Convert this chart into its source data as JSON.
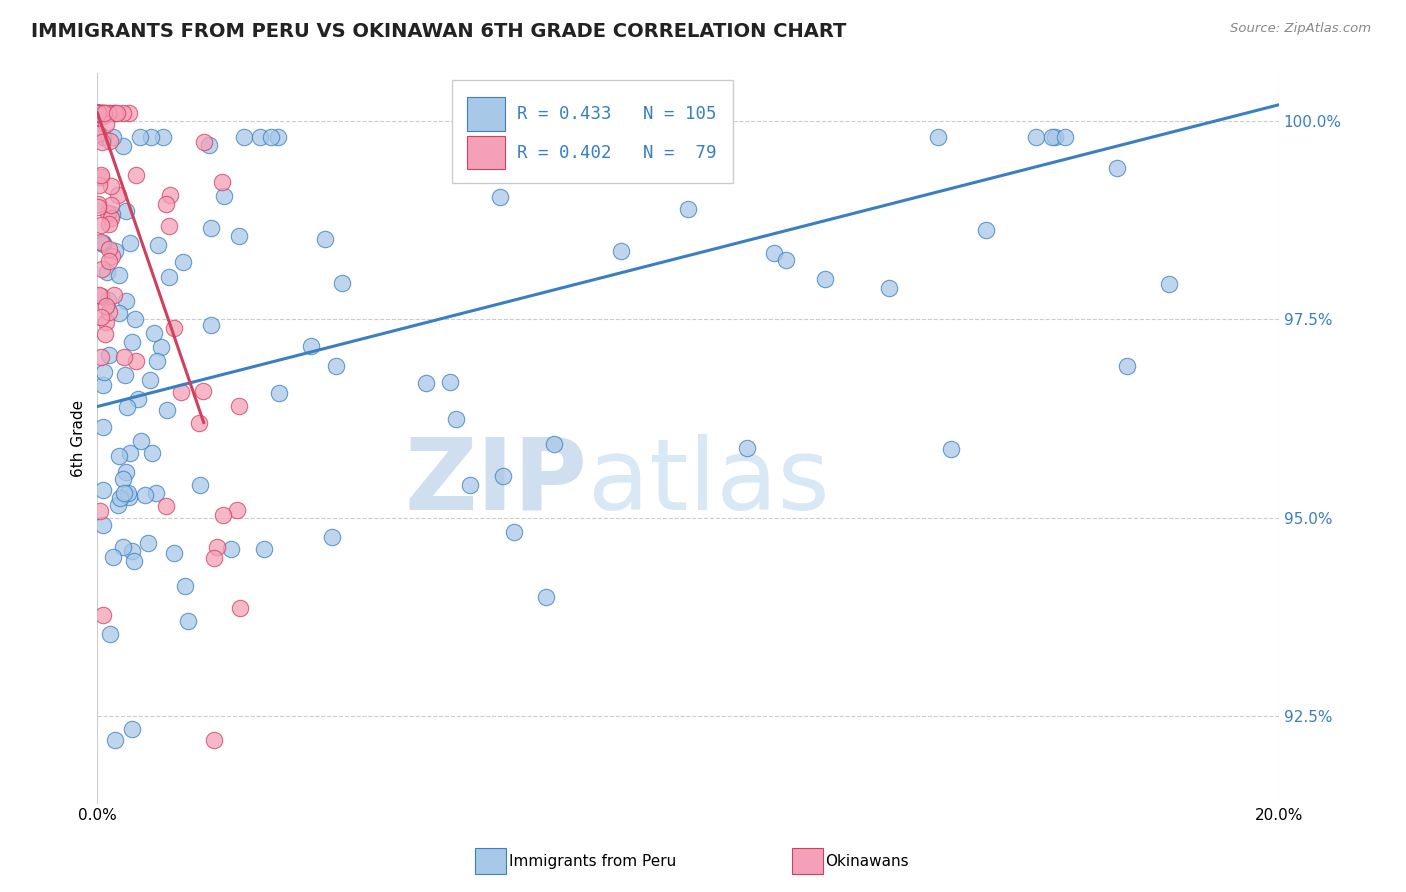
{
  "title": "IMMIGRANTS FROM PERU VS OKINAWAN 6TH GRADE CORRELATION CHART",
  "source": "Source: ZipAtlas.com",
  "ylabel": "6th Grade",
  "xmin": 0.0,
  "xmax": 0.2,
  "ymin": 0.914,
  "ymax": 1.006,
  "blue_R": 0.433,
  "blue_N": 105,
  "pink_R": 0.402,
  "pink_N": 79,
  "legend_label_blue": "Immigrants from Peru",
  "legend_label_pink": "Okinawans",
  "blue_color": "#a8c8e8",
  "pink_color": "#f4a0b8",
  "trend_blue_color": "#3a7fc1",
  "trend_pink_color": "#d04060",
  "blue_trend_x": [
    0.0,
    0.2
  ],
  "blue_trend_y": [
    0.964,
    1.002
  ],
  "pink_trend_x": [
    0.0,
    0.018
  ],
  "pink_trend_y": [
    1.001,
    0.962
  ],
  "ytick_vals": [
    0.925,
    0.95,
    0.975,
    1.0
  ],
  "ytick_labels": [
    "92.5%",
    "95.0%",
    "97.5%",
    "100.0%"
  ],
  "xtick_vals": [
    0.0,
    0.2
  ],
  "xtick_labels": [
    "0.0%",
    "20.0%"
  ],
  "watermark1": "ZIP",
  "watermark2": "atlas",
  "legend_text_color": "#3a7fc1"
}
